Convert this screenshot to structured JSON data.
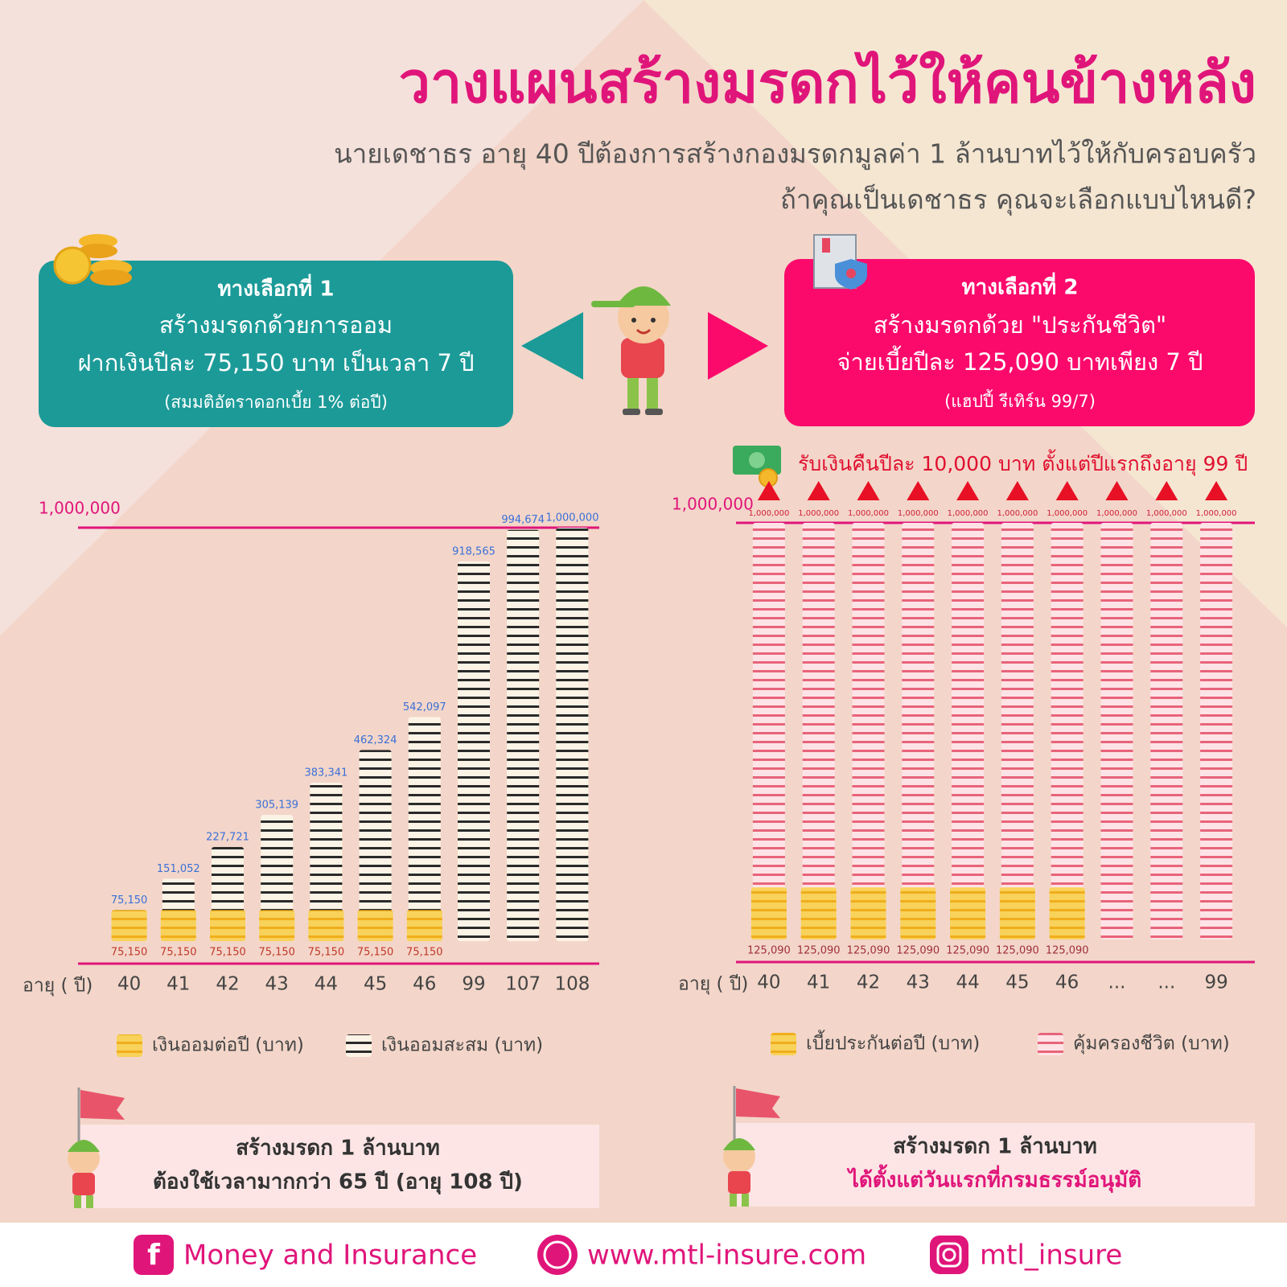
{
  "header": {
    "title": "วางแผนสร้างมรดกไว้ให้คนข้างหลัง",
    "subtitle_lines": [
      "นายเดชาธร อายุ 40 ปีต้องการสร้างกองมรดกมูลค่า 1 ล้านบาทไว้ให้กับครอบครัว",
      "ถ้าคุณเป็นเดชาธร คุณจะเลือกแบบไหนดี?"
    ]
  },
  "options": [
    {
      "heading": "ทางเลือกที่ 1",
      "lines": [
        "สร้างมรดกด้วยการออม",
        "ฝากเงินปีละ 75,150 บาท เป็นเวลา 7 ปี",
        "(สมมติอัตราดอกเบี้ย 1% ต่อปี)"
      ]
    },
    {
      "heading": "ทางเลือกที่ 2",
      "lines": [
        "สร้างมรดกด้วย \"ประกันชีวิต\"",
        "จ่ายเบี้ยปีละ 125,090 บาทเพียง 7  ปี",
        "(แฮปปี้ รีเทิร์น 99/7)"
      ]
    }
  ],
  "cashback_note": "รับเงินคืนปีละ 10,000  บาท ตั้งแต่ปีแรกถึงอายุ 99 ปี",
  "chart_data": [
    {
      "type": "bar",
      "x_label": "อายุ ( ปี)",
      "categories": [
        "40",
        "41",
        "42",
        "43",
        "44",
        "45",
        "46",
        "99",
        "107",
        "108"
      ],
      "ylim": [
        0,
        1000000
      ],
      "yticks": [
        {
          "value": 1000000,
          "label": "1,000,000"
        }
      ],
      "series": [
        {
          "name": "เงินออมต่อปี (บาท)",
          "color": "#f0ae1c",
          "values": [
            75150,
            75150,
            75150,
            75150,
            75150,
            75150,
            75150,
            null,
            null,
            null
          ],
          "value_labels": [
            "75,150",
            "75,150",
            "75,150",
            "75,150",
            "75,150",
            "75,150",
            "75,150",
            null,
            null,
            null
          ]
        },
        {
          "name": "เงินออมสะสม (บาท)",
          "color": "#2a2a2a",
          "values": [
            75150,
            151052,
            227721,
            305139,
            383341,
            462324,
            542097,
            918565,
            994674,
            1000000
          ],
          "value_labels": [
            "75,150",
            "151,052",
            "227,721",
            "305,139",
            "383,341",
            "462,324",
            "542,097",
            "918,565",
            "994,674",
            "1,000,000"
          ]
        }
      ]
    },
    {
      "type": "bar",
      "x_label": "อายุ ( ปี)",
      "categories": [
        "40",
        "41",
        "42",
        "43",
        "44",
        "45",
        "46",
        "...",
        "...",
        "99"
      ],
      "ylim": [
        0,
        1000000
      ],
      "yticks": [
        {
          "value": 1000000,
          "label": "1,000,000"
        }
      ],
      "series": [
        {
          "name": "เบี้ยประกันต่อปี (บาท)",
          "color": "#f0ae1c",
          "values": [
            125090,
            125090,
            125090,
            125090,
            125090,
            125090,
            125090,
            null,
            null,
            null
          ],
          "value_labels": [
            "125,090",
            "125,090",
            "125,090",
            "125,090",
            "125,090",
            "125,090",
            "125,090",
            null,
            null,
            null
          ]
        },
        {
          "name": "คุ้มครองชีวิต (บาท)",
          "color": "#e8647a",
          "values": [
            1000000,
            1000000,
            1000000,
            1000000,
            1000000,
            1000000,
            1000000,
            1000000,
            1000000,
            1000000
          ],
          "value_labels": [
            "1,000,000",
            "1,000,000",
            "1,000,000",
            "1,000,000",
            "1,000,000",
            "1,000,000",
            "1,000,000",
            "1,000,000",
            "1,000,000",
            "1,000,000"
          ]
        }
      ]
    }
  ],
  "conclusions": [
    {
      "lines": [
        "สร้างมรดก 1 ล้านบาท",
        "ต้องใช้เวลามากกว่า 65 ปี  (อายุ 108 ปี)"
      ]
    },
    {
      "lines": [
        "สร้างมรดก 1 ล้านบาท",
        "ได้ตั้งแต่วันแรกที่กรมธรรม์อนุมัติ"
      ]
    }
  ],
  "footer": {
    "facebook": "Money and Insurance",
    "website": "www.mtl-insure.com",
    "instagram": "mtl_insure"
  }
}
